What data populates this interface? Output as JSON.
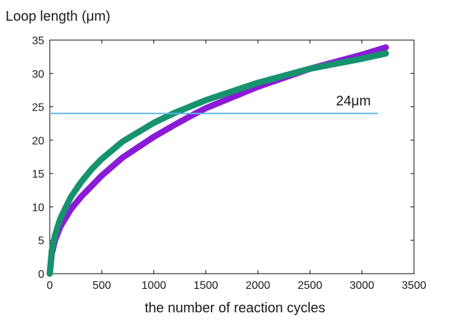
{
  "chart_data": {
    "type": "line",
    "title": "",
    "xlabel": "the number of reaction cycles",
    "ylabel": "Loop length (μm)",
    "xlim": [
      0,
      3500
    ],
    "ylim": [
      0,
      35
    ],
    "xticks": [
      0,
      500,
      1000,
      1500,
      2000,
      2500,
      3000,
      3500
    ],
    "yticks": [
      0,
      5,
      10,
      15,
      20,
      25,
      30,
      35
    ],
    "xtick_labels": [
      "0",
      "500",
      "1000",
      "1500",
      "2000",
      "2500",
      "3000",
      "3500"
    ],
    "ytick_labels": [
      "0",
      "5",
      "10",
      "15",
      "20",
      "25",
      "30",
      "35"
    ],
    "grid": false,
    "series": [
      {
        "name": "purple curve",
        "color": "#8a1bd6",
        "x": [
          0,
          20,
          50,
          100,
          200,
          300,
          400,
          500,
          700,
          1000,
          1200,
          1400,
          1500,
          2000,
          2500,
          3000,
          3230
        ],
        "y": [
          0,
          3.0,
          5.0,
          7.0,
          9.6,
          11.5,
          13.1,
          14.7,
          17.4,
          20.5,
          22.3,
          24.0,
          24.8,
          28.0,
          30.7,
          32.8,
          33.9
        ]
      },
      {
        "name": "green curve",
        "color": "#16936e",
        "x": [
          0,
          20,
          50,
          100,
          200,
          300,
          400,
          500,
          700,
          1000,
          1200,
          1500,
          2000,
          2500,
          3000,
          3230
        ],
        "y": [
          0,
          3.5,
          5.7,
          8.2,
          11.4,
          13.7,
          15.6,
          17.2,
          19.8,
          22.6,
          24.1,
          26.0,
          28.6,
          30.7,
          32.2,
          33.0
        ]
      },
      {
        "name": "reference line",
        "color": "#5bb9e6",
        "x": [
          0,
          3150
        ],
        "y": [
          24,
          24
        ]
      }
    ],
    "annotations": [
      {
        "text": "24μm",
        "x": 2750,
        "y": 25.2
      }
    ]
  }
}
